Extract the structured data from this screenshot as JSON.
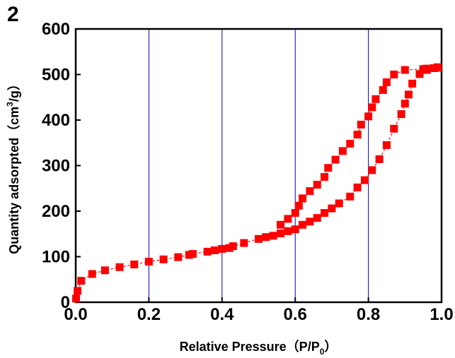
{
  "panel_label": "2",
  "chart_data": {
    "type": "scatter",
    "xlabel": "Relative Pressure（P/P",
    "xlabel_sub": "0",
    "xlabel_end": "）",
    "ylabel": "Quantity adsorpted（cm",
    "ylabel_sup": "3",
    "ylabel_end": "/g）",
    "xlim": [
      0.0,
      1.0
    ],
    "ylim": [
      0,
      600
    ],
    "xticks": [
      "0.0",
      "0.2",
      "0.4",
      "0.6",
      "0.8",
      "1.0"
    ],
    "yticks": [
      "0",
      "100",
      "200",
      "300",
      "400",
      "500",
      "600"
    ],
    "xtick_values": [
      0.0,
      0.2,
      0.4,
      0.6,
      0.8,
      1.0
    ],
    "ytick_values": [
      0,
      100,
      200,
      300,
      400,
      500,
      600
    ],
    "grid": "vertical",
    "colors": {
      "series": "#ff0000",
      "grid": "#0000cc",
      "axis": "#000000"
    },
    "series": [
      {
        "values_xy": [
          [
            0.001,
            8
          ],
          [
            0.005,
            25
          ],
          [
            0.015,
            47
          ],
          [
            0.045,
            62
          ],
          [
            0.08,
            70
          ],
          [
            0.12,
            77
          ],
          [
            0.16,
            83
          ],
          [
            0.2,
            89
          ],
          [
            0.24,
            94
          ],
          [
            0.28,
            99
          ],
          [
            0.31,
            104
          ],
          [
            0.32,
            106
          ],
          [
            0.36,
            111
          ],
          [
            0.38,
            114
          ],
          [
            0.4,
            117
          ],
          [
            0.42,
            119
          ],
          [
            0.43,
            123
          ],
          [
            0.46,
            130
          ],
          [
            0.5,
            139
          ],
          [
            0.52,
            143
          ],
          [
            0.54,
            146
          ],
          [
            0.56,
            151
          ],
          [
            0.58,
            156
          ],
          [
            0.6,
            160
          ],
          [
            0.62,
            170
          ],
          [
            0.64,
            177
          ],
          [
            0.66,
            185
          ],
          [
            0.68,
            196
          ],
          [
            0.7,
            206
          ],
          [
            0.72,
            217
          ],
          [
            0.75,
            232
          ],
          [
            0.77,
            252
          ],
          [
            0.79,
            268
          ],
          [
            0.81,
            290
          ],
          [
            0.83,
            314
          ],
          [
            0.85,
            345
          ],
          [
            0.87,
            381
          ],
          [
            0.89,
            413
          ],
          [
            0.9,
            436
          ],
          [
            0.91,
            456
          ],
          [
            0.92,
            480
          ],
          [
            0.94,
            501
          ],
          [
            0.96,
            510
          ],
          [
            0.98,
            514
          ],
          [
            0.99,
            516
          ]
        ]
      },
      {
        "values_xy": [
          [
            0.99,
            515
          ],
          [
            0.98,
            514
          ],
          [
            0.96,
            513
          ],
          [
            0.95,
            512
          ],
          [
            0.9,
            510
          ],
          [
            0.87,
            500
          ],
          [
            0.85,
            483
          ],
          [
            0.84,
            466
          ],
          [
            0.82,
            446
          ],
          [
            0.81,
            428
          ],
          [
            0.8,
            408
          ],
          [
            0.78,
            390
          ],
          [
            0.77,
            368
          ],
          [
            0.75,
            348
          ],
          [
            0.73,
            332
          ],
          [
            0.71,
            313
          ],
          [
            0.69,
            295
          ],
          [
            0.68,
            275
          ],
          [
            0.66,
            258
          ],
          [
            0.64,
            244
          ],
          [
            0.62,
            228
          ],
          [
            0.61,
            212
          ],
          [
            0.6,
            196
          ],
          [
            0.58,
            183
          ],
          [
            0.56,
            170
          ]
        ]
      }
    ]
  }
}
